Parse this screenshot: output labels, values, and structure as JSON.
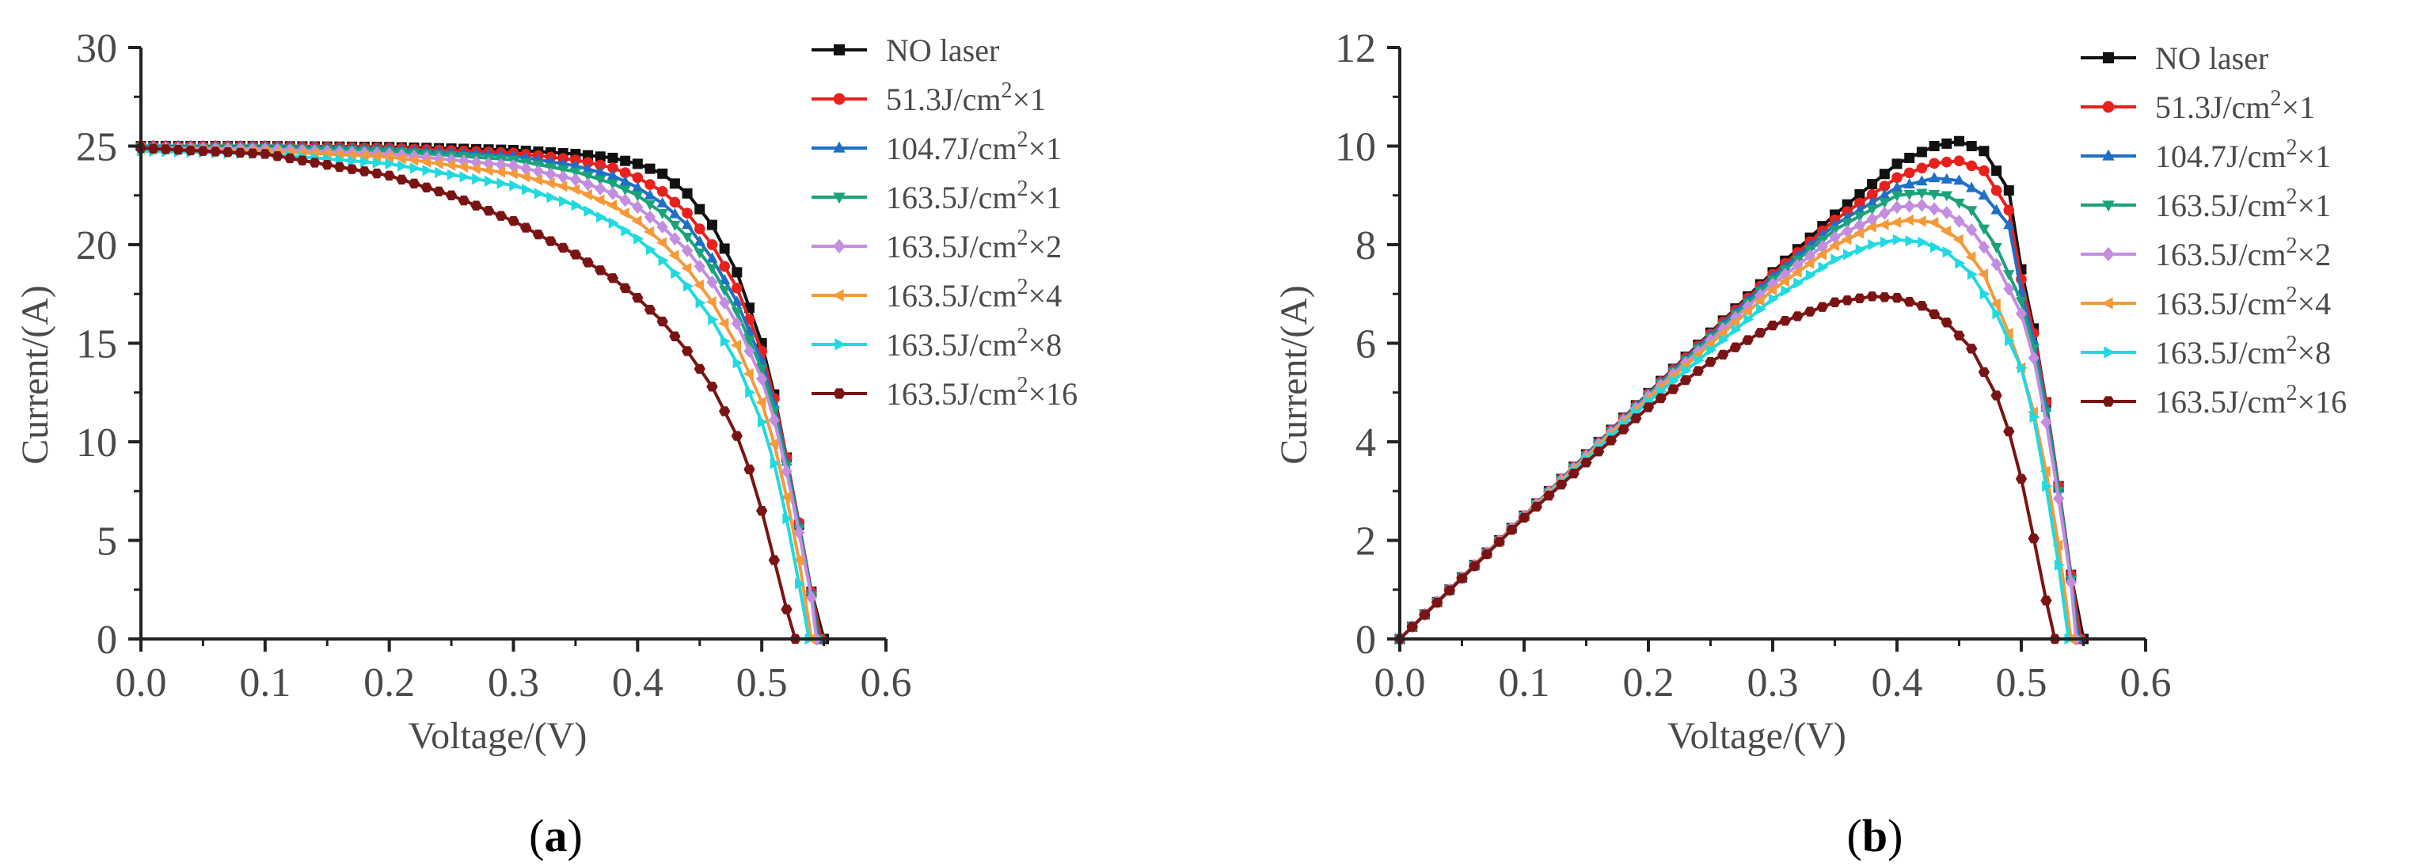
{
  "figure": {
    "panel_labels": [
      {
        "open": "(",
        "letter": "a",
        "close": ")"
      },
      {
        "open": "(",
        "letter": "b",
        "close": ")"
      }
    ]
  },
  "chart_data": [
    {
      "type": "line",
      "panel": "a",
      "title": "",
      "xlabel": "Voltage/(V)",
      "ylabel": "Current/(A)",
      "xlim": [
        0.0,
        0.6
      ],
      "ylim": [
        0,
        30
      ],
      "xticks": [
        "0.0",
        "0.1",
        "0.2",
        "0.3",
        "0.4",
        "0.5",
        "0.6"
      ],
      "yticks": [
        "0",
        "5",
        "10",
        "15",
        "20",
        "25",
        "30"
      ],
      "legend_position": "top-right",
      "series": [
        {
          "name": "NO laser",
          "legend_parts": [
            "NO laser"
          ],
          "color": "#111111",
          "marker": "square",
          "x": [
            0,
            0.1,
            0.2,
            0.3,
            0.35,
            0.38,
            0.4,
            0.42,
            0.44,
            0.46,
            0.48,
            0.5,
            0.51,
            0.52,
            0.53,
            0.54,
            0.55
          ],
          "y": [
            25.0,
            25.0,
            24.95,
            24.8,
            24.6,
            24.4,
            24.1,
            23.6,
            22.6,
            21.0,
            18.6,
            15.0,
            12.4,
            9.2,
            5.8,
            2.4,
            0.0
          ]
        },
        {
          "name": "51.3J/cm2×1",
          "legend_parts": [
            "51.3J/cm",
            "2",
            "×1"
          ],
          "color": "#e8211d",
          "marker": "circle",
          "x": [
            0,
            0.1,
            0.2,
            0.3,
            0.35,
            0.38,
            0.4,
            0.42,
            0.44,
            0.46,
            0.48,
            0.5,
            0.51,
            0.52,
            0.53,
            0.54,
            0.548
          ],
          "y": [
            25.0,
            25.0,
            24.9,
            24.65,
            24.3,
            23.9,
            23.4,
            22.7,
            21.6,
            20.0,
            17.8,
            14.6,
            12.2,
            9.2,
            5.9,
            2.4,
            0.0
          ]
        },
        {
          "name": "104.7J/cm2×1",
          "legend_parts": [
            "104.7J/cm",
            "2",
            "×1"
          ],
          "color": "#1f6fc5",
          "marker": "triangle-up",
          "x": [
            0,
            0.1,
            0.2,
            0.3,
            0.35,
            0.38,
            0.4,
            0.42,
            0.44,
            0.46,
            0.48,
            0.5,
            0.51,
            0.52,
            0.53,
            0.54,
            0.546
          ],
          "y": [
            25.0,
            24.98,
            24.85,
            24.5,
            24.0,
            23.5,
            22.9,
            22.1,
            21.0,
            19.3,
            17.1,
            14.1,
            11.9,
            9.0,
            5.8,
            2.3,
            0.0
          ]
        },
        {
          "name": "163.5J/cm2×1",
          "legend_parts": [
            "163.5J/cm",
            "2",
            "×1"
          ],
          "color": "#1aa37a",
          "marker": "triangle-down",
          "x": [
            0,
            0.1,
            0.2,
            0.3,
            0.35,
            0.38,
            0.4,
            0.42,
            0.44,
            0.46,
            0.48,
            0.5,
            0.51,
            0.52,
            0.53,
            0.54,
            0.545
          ],
          "y": [
            24.95,
            24.9,
            24.75,
            24.3,
            23.7,
            23.1,
            22.5,
            21.6,
            20.4,
            18.8,
            16.6,
            13.7,
            11.6,
            8.8,
            5.6,
            2.2,
            0.0
          ]
        },
        {
          "name": "163.5J/cm2×2",
          "legend_parts": [
            "163.5J/cm",
            "2",
            "×2"
          ],
          "color": "#c38de0",
          "marker": "diamond",
          "x": [
            0,
            0.1,
            0.2,
            0.3,
            0.35,
            0.38,
            0.4,
            0.42,
            0.44,
            0.46,
            0.48,
            0.5,
            0.51,
            0.52,
            0.53,
            0.54,
            0.544
          ],
          "y": [
            24.9,
            24.85,
            24.6,
            24.0,
            23.3,
            22.6,
            21.9,
            20.9,
            19.7,
            18.1,
            16.0,
            13.2,
            11.1,
            8.5,
            5.4,
            2.1,
            0.0
          ]
        },
        {
          "name": "163.5J/cm2×4",
          "legend_parts": [
            "163.5J/cm",
            "2",
            "×4"
          ],
          "color": "#f59a3a",
          "marker": "left-triangle",
          "x": [
            0,
            0.1,
            0.2,
            0.3,
            0.35,
            0.38,
            0.4,
            0.42,
            0.44,
            0.46,
            0.48,
            0.5,
            0.51,
            0.52,
            0.53,
            0.54
          ],
          "y": [
            24.85,
            24.75,
            24.45,
            23.6,
            22.8,
            22.0,
            21.2,
            20.1,
            18.8,
            17.1,
            14.9,
            12.0,
            9.9,
            7.2,
            4.0,
            0.0
          ]
        },
        {
          "name": "163.5J/cm2×8",
          "legend_parts": [
            "163.5J/cm",
            "2",
            "×8"
          ],
          "color": "#23d9e0",
          "marker": "right-triangle",
          "x": [
            0,
            0.1,
            0.2,
            0.3,
            0.35,
            0.38,
            0.4,
            0.42,
            0.44,
            0.46,
            0.48,
            0.5,
            0.51,
            0.52,
            0.53,
            0.538
          ],
          "y": [
            24.75,
            24.6,
            24.1,
            23.0,
            22.0,
            21.1,
            20.3,
            19.2,
            17.9,
            16.2,
            14.0,
            11.0,
            8.9,
            6.1,
            2.8,
            0.0
          ]
        },
        {
          "name": "163.5J/cm2×16",
          "legend_parts": [
            "163.5J/cm",
            "2",
            "×16"
          ],
          "color": "#7a1414",
          "marker": "hexagon",
          "x": [
            0,
            0.1,
            0.2,
            0.25,
            0.3,
            0.35,
            0.38,
            0.4,
            0.42,
            0.44,
            0.46,
            0.48,
            0.49,
            0.5,
            0.51,
            0.52,
            0.527
          ],
          "y": [
            24.9,
            24.6,
            23.5,
            22.5,
            21.2,
            19.5,
            18.3,
            17.3,
            16.1,
            14.6,
            12.8,
            10.3,
            8.6,
            6.5,
            4.0,
            1.5,
            0.0
          ]
        }
      ]
    },
    {
      "type": "line",
      "panel": "b",
      "title": "",
      "xlabel": "Voltage/(V)",
      "ylabel": "Current/(A)",
      "xlim": [
        0.0,
        0.6
      ],
      "ylim": [
        0,
        12
      ],
      "xticks": [
        "0.0",
        "0.1",
        "0.2",
        "0.3",
        "0.4",
        "0.5",
        "0.6"
      ],
      "yticks": [
        "0",
        "2",
        "4",
        "6",
        "8",
        "10",
        "12"
      ],
      "legend_position": "top-right",
      "series": [
        {
          "name": "NO laser",
          "legend_parts": [
            "NO laser"
          ],
          "color": "#111111",
          "marker": "square",
          "x": [
            0,
            0.1,
            0.2,
            0.3,
            0.35,
            0.4,
            0.43,
            0.45,
            0.47,
            0.49,
            0.5,
            0.51,
            0.52,
            0.53,
            0.54,
            0.55
          ],
          "y": [
            0.0,
            2.5,
            4.99,
            7.44,
            8.61,
            9.64,
            10.0,
            10.1,
            9.9,
            9.1,
            7.5,
            6.3,
            4.8,
            3.1,
            1.3,
            0.0
          ]
        },
        {
          "name": "51.3J/cm2×1",
          "legend_parts": [
            "51.3J/cm",
            "2",
            "×1"
          ],
          "color": "#e8211d",
          "marker": "circle",
          "x": [
            0,
            0.1,
            0.2,
            0.3,
            0.35,
            0.4,
            0.43,
            0.45,
            0.47,
            0.49,
            0.5,
            0.51,
            0.52,
            0.53,
            0.54,
            0.548
          ],
          "y": [
            0.0,
            2.5,
            4.98,
            7.4,
            8.5,
            9.36,
            9.65,
            9.7,
            9.5,
            8.7,
            7.3,
            6.2,
            4.8,
            3.1,
            1.3,
            0.0
          ]
        },
        {
          "name": "104.7J/cm2×1",
          "legend_parts": [
            "104.7J/cm",
            "2",
            "×1"
          ],
          "color": "#1f6fc5",
          "marker": "triangle-up",
          "x": [
            0,
            0.1,
            0.2,
            0.3,
            0.35,
            0.4,
            0.43,
            0.45,
            0.47,
            0.49,
            0.5,
            0.51,
            0.52,
            0.53,
            0.54,
            0.546
          ],
          "y": [
            0.0,
            2.5,
            4.97,
            7.35,
            8.4,
            9.16,
            9.35,
            9.3,
            9.0,
            8.4,
            7.05,
            6.05,
            4.7,
            3.05,
            1.25,
            0.0
          ]
        },
        {
          "name": "163.5J/cm2×1",
          "legend_parts": [
            "163.5J/cm",
            "2",
            "×1"
          ],
          "color": "#1aa37a",
          "marker": "triangle-down",
          "x": [
            0,
            0.1,
            0.2,
            0.3,
            0.35,
            0.4,
            0.42,
            0.44,
            0.46,
            0.48,
            0.5,
            0.51,
            0.52,
            0.53,
            0.54,
            0.545
          ],
          "y": [
            0.0,
            2.49,
            4.95,
            7.29,
            8.3,
            9.0,
            9.05,
            9.0,
            8.7,
            7.95,
            6.85,
            5.9,
            4.6,
            3.0,
            1.2,
            0.0
          ]
        },
        {
          "name": "163.5J/cm2×2",
          "legend_parts": [
            "163.5J/cm",
            "2",
            "×2"
          ],
          "color": "#c38de0",
          "marker": "diamond",
          "x": [
            0,
            0.1,
            0.2,
            0.3,
            0.35,
            0.4,
            0.42,
            0.44,
            0.46,
            0.48,
            0.5,
            0.51,
            0.52,
            0.53,
            0.54,
            0.544
          ],
          "y": [
            0.0,
            2.49,
            4.92,
            7.2,
            8.15,
            8.76,
            8.8,
            8.65,
            8.3,
            7.6,
            6.6,
            5.7,
            4.4,
            2.85,
            1.15,
            0.0
          ]
        },
        {
          "name": "163.5J/cm2×4",
          "legend_parts": [
            "163.5J/cm",
            "2",
            "×4"
          ],
          "color": "#f59a3a",
          "marker": "left-triangle",
          "x": [
            0,
            0.1,
            0.2,
            0.3,
            0.35,
            0.38,
            0.41,
            0.43,
            0.45,
            0.47,
            0.49,
            0.5,
            0.51,
            0.52,
            0.53,
            0.54
          ],
          "y": [
            0.0,
            2.48,
            4.89,
            7.08,
            7.98,
            8.36,
            8.5,
            8.45,
            8.1,
            7.4,
            6.2,
            5.5,
            4.6,
            3.4,
            1.9,
            0.0
          ]
        },
        {
          "name": "163.5J/cm2×8",
          "legend_parts": [
            "163.5J/cm",
            "2",
            "×8"
          ],
          "color": "#23d9e0",
          "marker": "right-triangle",
          "x": [
            0,
            0.1,
            0.2,
            0.3,
            0.35,
            0.38,
            0.4,
            0.42,
            0.44,
            0.46,
            0.48,
            0.5,
            0.51,
            0.52,
            0.53,
            0.538
          ],
          "y": [
            0.0,
            2.46,
            4.82,
            6.9,
            7.7,
            8.0,
            8.1,
            8.05,
            7.85,
            7.4,
            6.6,
            5.5,
            4.5,
            3.1,
            1.5,
            0.0
          ]
        },
        {
          "name": "163.5J/cm2×16",
          "legend_parts": [
            "163.5J/cm",
            "2",
            "×16"
          ],
          "color": "#7a1414",
          "marker": "hexagon",
          "x": [
            0,
            0.1,
            0.2,
            0.25,
            0.3,
            0.35,
            0.38,
            0.4,
            0.42,
            0.44,
            0.46,
            0.48,
            0.49,
            0.5,
            0.51,
            0.52,
            0.527
          ],
          "y": [
            0.0,
            2.46,
            4.7,
            5.62,
            6.36,
            6.83,
            6.95,
            6.92,
            6.76,
            6.42,
            5.89,
            4.94,
            4.21,
            3.25,
            2.04,
            0.78,
            0.0
          ]
        }
      ]
    }
  ]
}
